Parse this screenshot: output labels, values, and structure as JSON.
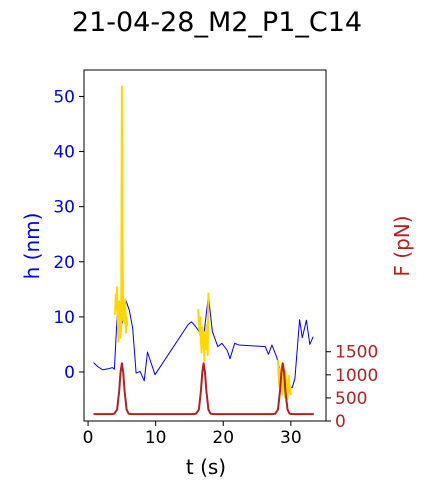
{
  "chart_data": {
    "type": "line",
    "title": "21-04-28_M2_P1_C14",
    "xlabel": "t (s)",
    "ylabel": "h (nm)",
    "y2label": "F (pN)",
    "xlim": [
      -0.6,
      35.2
    ],
    "ylim": [
      -8.9,
      54.8
    ],
    "y2lim": [
      0,
      7600
    ],
    "xticks": [
      "0",
      "10",
      "20",
      "30"
    ],
    "yticks": [
      "0",
      "10",
      "20",
      "30",
      "40",
      "50"
    ],
    "y2ticks": [
      "0",
      "500",
      "1000",
      "1500"
    ],
    "grid": false,
    "colors": {
      "h": "#0000ee",
      "highlight": "#ffd700",
      "force": "#b22222"
    },
    "series": [
      {
        "axis": "h",
        "color": "#0000ee",
        "x": [
          0.8,
          1.5,
          2.2,
          3.0,
          3.6,
          3.9,
          4.3,
          5.0,
          5.6,
          6.1,
          6.6,
          7.1,
          7.7,
          8.3,
          8.8,
          9.9,
          14.8,
          15.3,
          15.8,
          16.3,
          17.0,
          17.8,
          18.4,
          19.2,
          19.8,
          20.6,
          21.0,
          21.7,
          22.3,
          26.2,
          26.7,
          27.2,
          27.9,
          28.6,
          29.2,
          29.7,
          30.2,
          30.6,
          31.3,
          31.7,
          32.3,
          32.8,
          33.3
        ],
        "y": [
          1.7,
          0.9,
          0.4,
          0.6,
          0.8,
          0.5,
          10.1,
          8.7,
          13.0,
          11.2,
          7.9,
          -0.2,
          0.1,
          -1.6,
          3.6,
          -0.5,
          8.6,
          9.1,
          8.4,
          7.6,
          5.4,
          13.8,
          7.3,
          4.6,
          5.2,
          3.9,
          2.4,
          5.2,
          4.9,
          4.6,
          3.2,
          4.9,
          2.7,
          -0.8,
          -3.0,
          -2.4,
          -2.9,
          -1.2,
          9.5,
          6.2,
          9.4,
          5.0,
          6.4
        ]
      },
      {
        "axis": "h",
        "color": "#ffd700",
        "x": [
          4.0,
          4.1,
          4.2,
          4.3,
          4.4,
          4.5,
          4.6,
          4.7,
          4.8,
          4.9,
          5.0,
          5.1,
          5.2,
          5.3,
          5.4,
          5.5,
          5.6,
          5.7,
          5.8
        ],
        "y": [
          10.4,
          14.1,
          11.6,
          15.4,
          9.0,
          5.5,
          12.8,
          9.7,
          6.2,
          8.4,
          51.8,
          24.8,
          9.4,
          12.1,
          8.8,
          13.2,
          7.1,
          9.9,
          8.4
        ]
      },
      {
        "axis": "h",
        "color": "#ffd700",
        "x": [
          16.3,
          16.4,
          16.5,
          16.6,
          16.7,
          16.8,
          16.9,
          17.0,
          17.1,
          17.2,
          17.3,
          17.4,
          17.5,
          17.6,
          17.7,
          17.8
        ],
        "y": [
          11.4,
          9.2,
          7.0,
          9.9,
          5.7,
          3.5,
          8.1,
          4.4,
          7.3,
          2.0,
          6.6,
          4.1,
          8.5,
          6.0,
          3.1,
          14.4
        ]
      },
      {
        "axis": "h",
        "color": "#ffd700",
        "x": [
          28.1,
          28.2,
          28.3,
          28.4,
          28.5,
          28.6,
          28.7,
          28.8,
          28.9,
          29.0,
          29.1,
          29.2,
          29.3,
          29.4,
          29.5,
          29.6,
          29.7,
          29.8,
          29.9,
          30.0
        ],
        "y": [
          2.2,
          -0.9,
          -2.6,
          0.6,
          -3.2,
          -1.1,
          -4.1,
          -0.5,
          1.3,
          -2.0,
          -4.6,
          0.2,
          -3.4,
          -1.5,
          -4.9,
          -2.2,
          -0.7,
          -3.8,
          -2.6,
          -4.2
        ]
      },
      {
        "axis": "F",
        "color": "#b22222",
        "x": [
          0.8,
          3.5,
          3.9,
          4.3,
          4.6,
          4.8,
          5.0,
          5.2,
          5.4,
          5.7,
          6.0,
          6.4,
          15.6,
          16.0,
          16.4,
          16.7,
          16.9,
          17.1,
          17.3,
          17.5,
          17.8,
          18.1,
          18.5,
          27.3,
          27.7,
          28.1,
          28.4,
          28.6,
          28.8,
          29.0,
          29.2,
          29.5,
          29.8,
          30.2,
          33.4
        ],
        "y": [
          150,
          150,
          160,
          250,
          650,
          1050,
          1250,
          1050,
          650,
          250,
          160,
          150,
          150,
          160,
          250,
          650,
          1050,
          1250,
          1050,
          650,
          250,
          160,
          150,
          150,
          160,
          250,
          650,
          1050,
          1250,
          1050,
          650,
          250,
          160,
          150,
          150
        ]
      }
    ]
  }
}
